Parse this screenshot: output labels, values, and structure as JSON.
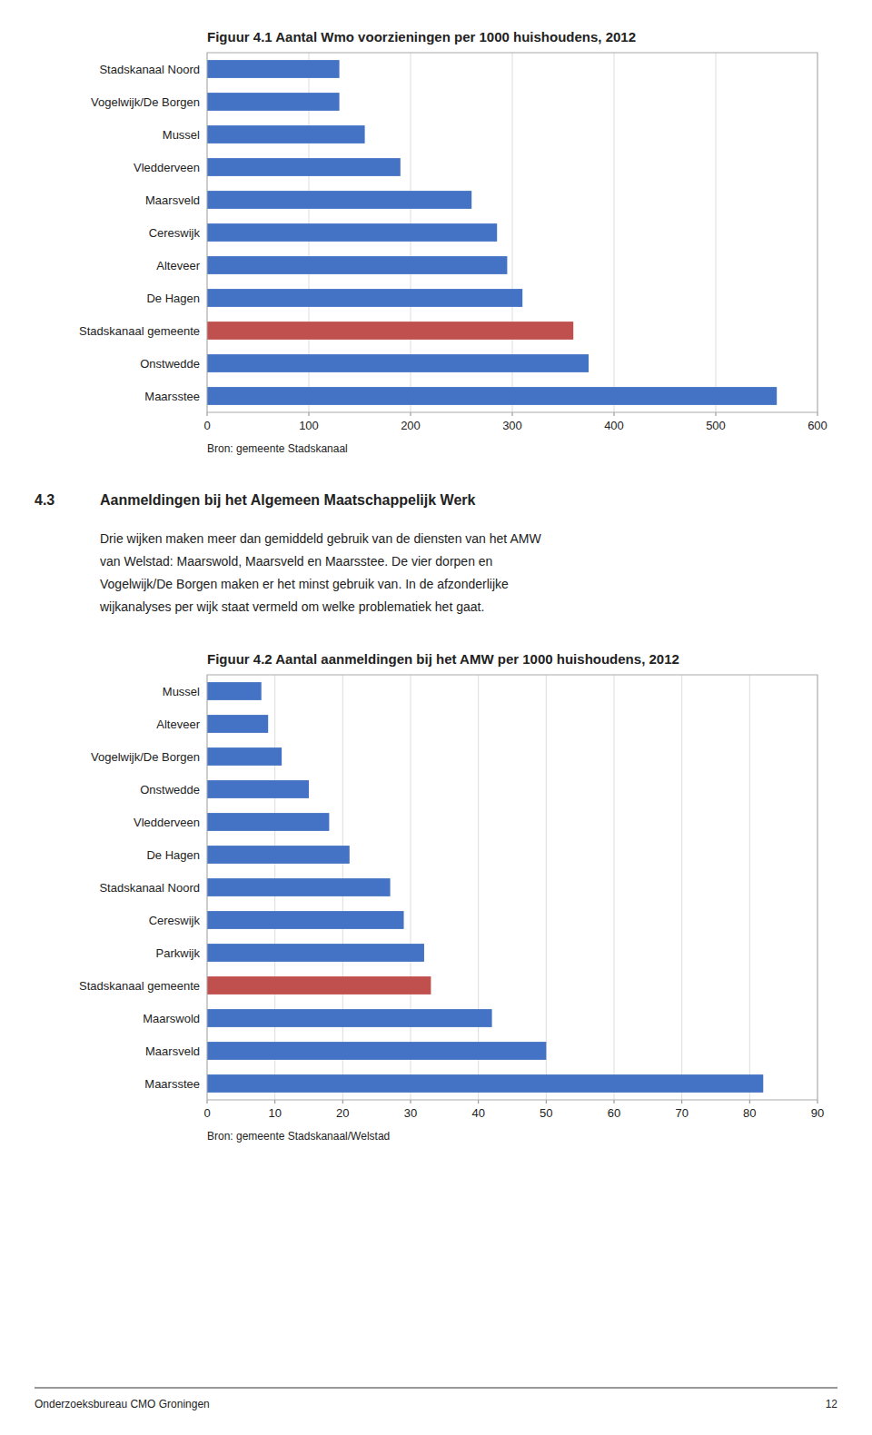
{
  "chart_data": [
    {
      "type": "bar",
      "orientation": "horizontal",
      "title": "Figuur 4.1 Aantal Wmo voorzieningen per 1000 huishoudens, 2012",
      "categories": [
        "Stadskanaal Noord",
        "Vogelwijk/De Borgen",
        "Mussel",
        "Vledderveen",
        "Maarsveld",
        "Cereswijk",
        "Alteveer",
        "De Hagen",
        "Stadskanaal gemeente",
        "Onstwedde",
        "Maarsstee"
      ],
      "values": [
        130,
        130,
        155,
        190,
        260,
        285,
        295,
        310,
        360,
        375,
        560
      ],
      "colors": [
        "#4472C4",
        "#4472C4",
        "#4472C4",
        "#4472C4",
        "#4472C4",
        "#4472C4",
        "#4472C4",
        "#4472C4",
        "#C0504D",
        "#4472C4",
        "#4472C4"
      ],
      "xlim": [
        0,
        600
      ],
      "xticks": [
        0,
        100,
        200,
        300,
        400,
        500,
        600
      ],
      "grid": true,
      "source": "Bron: gemeente Stadskanaal"
    },
    {
      "type": "bar",
      "orientation": "horizontal",
      "title": "Figuur 4.2  Aantal aanmeldingen bij het AMW per 1000 huishoudens, 2012",
      "categories": [
        "Mussel",
        "Alteveer",
        "Vogelwijk/De Borgen",
        "Onstwedde",
        "Vledderveen",
        "De Hagen",
        "Stadskanaal Noord",
        "Cereswijk",
        "Parkwijk",
        "Stadskanaal gemeente",
        "Maarswold",
        "Maarsveld",
        "Maarsstee"
      ],
      "values": [
        8,
        9,
        11,
        15,
        18,
        21,
        27,
        29,
        32,
        33,
        42,
        50,
        82
      ],
      "colors": [
        "#4472C4",
        "#4472C4",
        "#4472C4",
        "#4472C4",
        "#4472C4",
        "#4472C4",
        "#4472C4",
        "#4472C4",
        "#4472C4",
        "#C0504D",
        "#4472C4",
        "#4472C4",
        "#4472C4"
      ],
      "xlim": [
        0,
        90
      ],
      "xticks": [
        0,
        10,
        20,
        30,
        40,
        50,
        60,
        70,
        80,
        90
      ],
      "grid": true,
      "source": "Bron: gemeente Stadskanaal/Welstad"
    }
  ],
  "section_num": "4.3",
  "section_heading": "Aanmeldingen bij het Algemeen Maatschappelijk Werk",
  "section_body": "Drie wijken maken meer dan gemiddeld gebruik van de diensten van het AMW\nvan Welstad: Maarswold, Maarsveld en Maarsstee. De vier dorpen en\nVogelwijk/De Borgen maken er het minst gebruik van. In de afzonderlijke\nwijkanalyses per wijk staat vermeld om welke problematiek het gaat.",
  "footer_left": "Onderzoeksbureau CMO Groningen",
  "footer_right": "12"
}
